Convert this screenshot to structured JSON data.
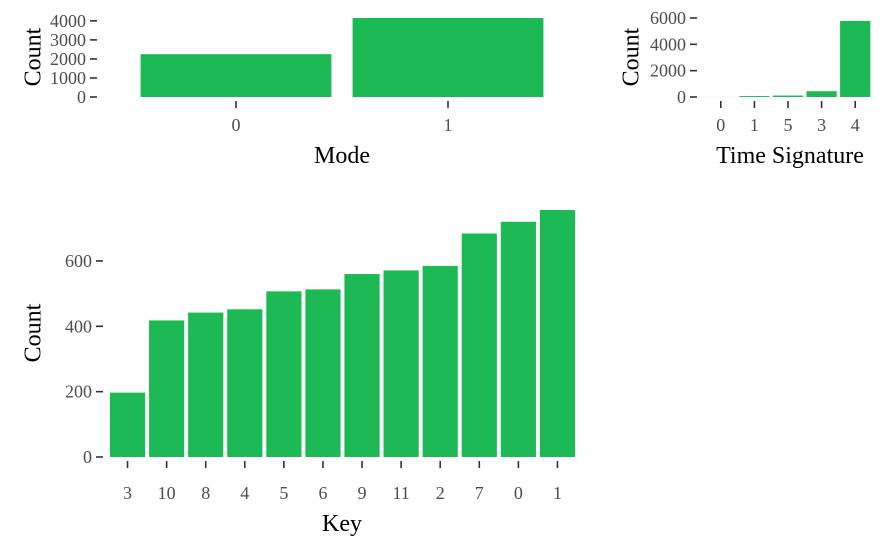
{
  "chart_data": [
    {
      "id": "mode",
      "type": "bar",
      "xlabel": "Mode",
      "ylabel": "Count",
      "categories": [
        "0",
        "1"
      ],
      "values": [
        2250,
        4150
      ],
      "ylim": [
        0,
        4150
      ],
      "yticks": [
        0,
        1000,
        2000,
        3000,
        4000
      ],
      "grid": false,
      "color": "#1DB954"
    },
    {
      "id": "time-signature",
      "type": "bar",
      "xlabel": "Time Signature",
      "ylabel": "Count",
      "categories": [
        "0",
        "1",
        "5",
        "3",
        "4"
      ],
      "values": [
        3,
        70,
        110,
        440,
        5780
      ],
      "ylim": [
        0,
        6000
      ],
      "yticks": [
        0,
        2000,
        4000,
        6000
      ],
      "grid": false,
      "color": "#1DB954"
    },
    {
      "id": "key",
      "type": "bar",
      "xlabel": "Key",
      "ylabel": "Count",
      "categories": [
        "3",
        "10",
        "8",
        "4",
        "5",
        "6",
        "9",
        "11",
        "2",
        "7",
        "0",
        "1"
      ],
      "values": [
        197,
        418,
        442,
        452,
        507,
        513,
        560,
        571,
        585,
        684,
        720,
        756
      ],
      "ylim": [
        0,
        756
      ],
      "yticks": [
        0,
        200,
        400,
        600
      ],
      "grid": false,
      "color": "#1DB954"
    }
  ]
}
